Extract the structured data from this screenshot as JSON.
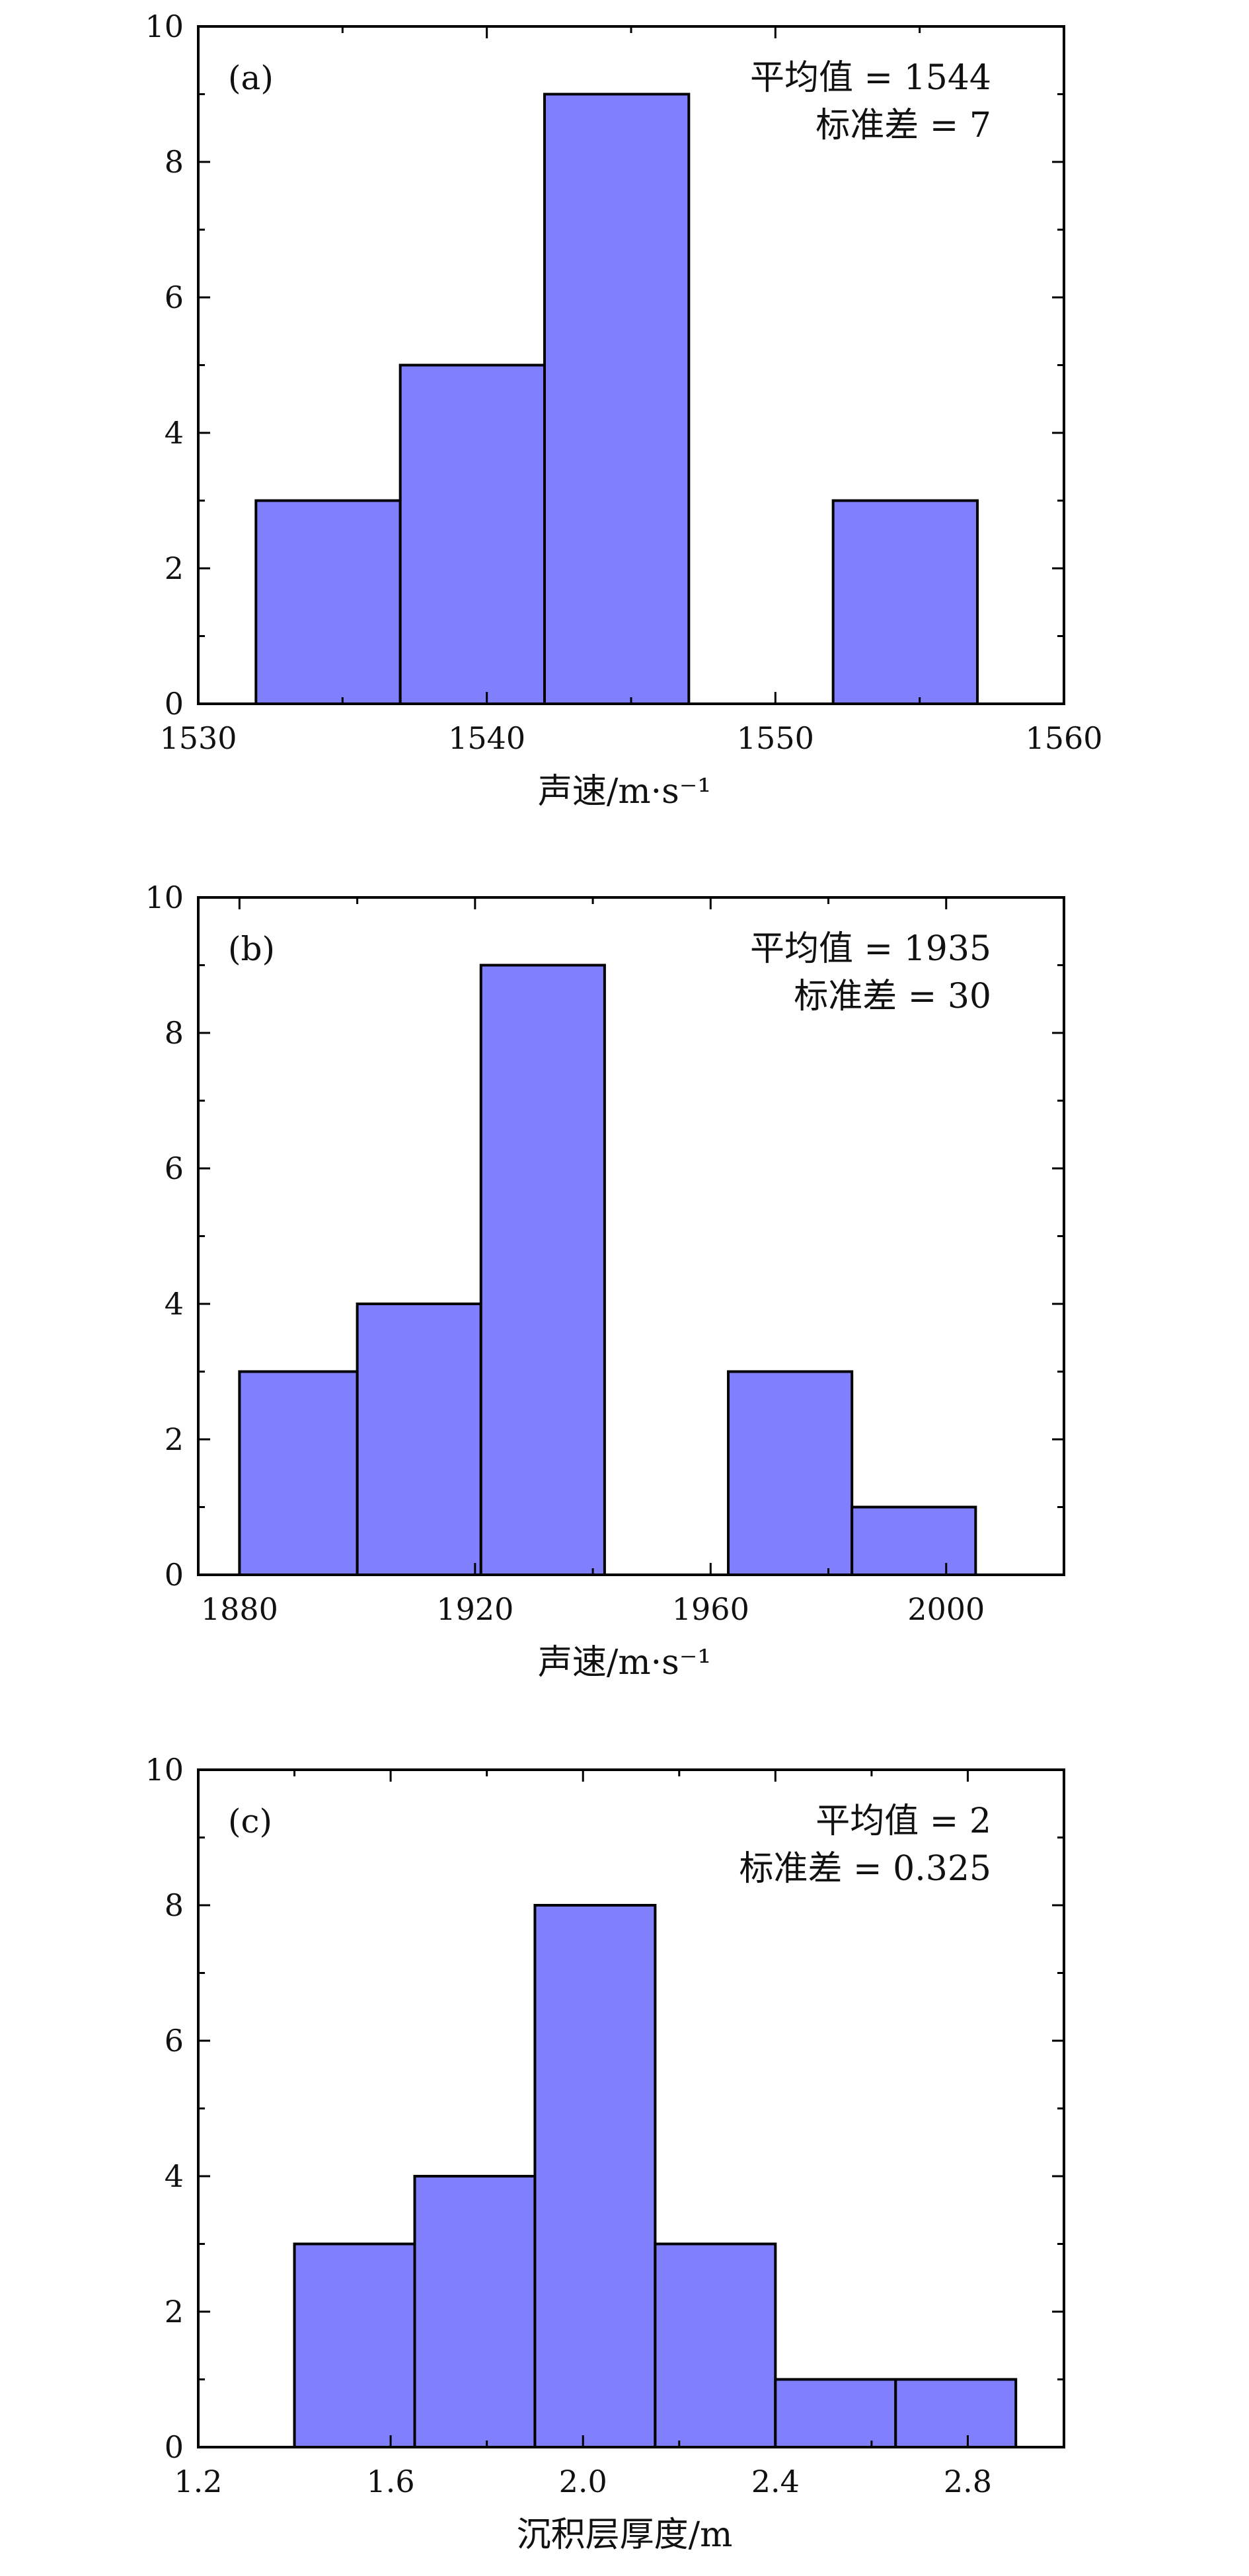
{
  "figure": {
    "bar_color": "#8080ff",
    "edge_color": "#000000"
  },
  "chart_data": [
    {
      "type": "bar",
      "panel": "(a)",
      "title": "",
      "xlabel": "声速/m·s⁻¹",
      "ylabel": "",
      "xlim": [
        1530,
        1560
      ],
      "ylim": [
        0,
        10
      ],
      "xticks": [
        1530,
        1540,
        1550,
        1560
      ],
      "xtick_labels": [
        "1530",
        "1540",
        "1550",
        "1560"
      ],
      "yticks": [
        0,
        2,
        4,
        6,
        8,
        10
      ],
      "ytick_labels": [
        "0",
        "2",
        "4",
        "6",
        "8",
        "10"
      ],
      "bins": [
        {
          "x0": 1532,
          "x1": 1537,
          "value": 3
        },
        {
          "x0": 1537,
          "x1": 1542,
          "value": 5
        },
        {
          "x0": 1542,
          "x1": 1547,
          "value": 9
        },
        {
          "x0": 1547,
          "x1": 1552,
          "value": 0
        },
        {
          "x0": 1552,
          "x1": 1557,
          "value": 3
        }
      ],
      "annotations": [
        "平均值 = 1544",
        "标准差 = 7"
      ]
    },
    {
      "type": "bar",
      "panel": "(b)",
      "title": "",
      "xlabel": "声速/m·s⁻¹",
      "ylabel": "",
      "xlim": [
        1873,
        2020
      ],
      "ylim": [
        0,
        10
      ],
      "xticks": [
        1880,
        1920,
        1960,
        2000
      ],
      "xtick_labels": [
        "1880",
        "1920",
        "1960",
        "2000"
      ],
      "yticks": [
        0,
        2,
        4,
        6,
        8,
        10
      ],
      "ytick_labels": [
        "0",
        "2",
        "4",
        "6",
        "8",
        "10"
      ],
      "bins": [
        {
          "x0": 1880,
          "x1": 1900,
          "value": 3
        },
        {
          "x0": 1900,
          "x1": 1921,
          "value": 4
        },
        {
          "x0": 1921,
          "x1": 1942,
          "value": 9
        },
        {
          "x0": 1942,
          "x1": 1963,
          "value": 0
        },
        {
          "x0": 1963,
          "x1": 1984,
          "value": 3
        },
        {
          "x0": 1984,
          "x1": 2005,
          "value": 1
        }
      ],
      "annotations": [
        "平均值 = 1935",
        "标准差 = 30"
      ]
    },
    {
      "type": "bar",
      "panel": "(c)",
      "title": "",
      "xlabel": "沉积层厚度/m",
      "ylabel": "",
      "xlim": [
        1.2,
        3.0
      ],
      "ylim": [
        0,
        10
      ],
      "xticks": [
        1.2,
        1.6,
        2.0,
        2.4,
        2.8
      ],
      "xtick_labels": [
        "1.2",
        "1.6",
        "2.0",
        "2.4",
        "2.8"
      ],
      "yticks": [
        0,
        2,
        4,
        6,
        8,
        10
      ],
      "ytick_labels": [
        "0",
        "2",
        "4",
        "6",
        "8",
        "10"
      ],
      "bins": [
        {
          "x0": 1.4,
          "x1": 1.65,
          "value": 3
        },
        {
          "x0": 1.65,
          "x1": 1.9,
          "value": 4
        },
        {
          "x0": 1.9,
          "x1": 2.15,
          "value": 8
        },
        {
          "x0": 2.15,
          "x1": 2.4,
          "value": 3
        },
        {
          "x0": 2.4,
          "x1": 2.65,
          "value": 1
        },
        {
          "x0": 2.65,
          "x1": 2.9,
          "value": 1
        }
      ],
      "annotations": [
        "平均值 = 2",
        "标准差 = 0.325"
      ]
    }
  ]
}
